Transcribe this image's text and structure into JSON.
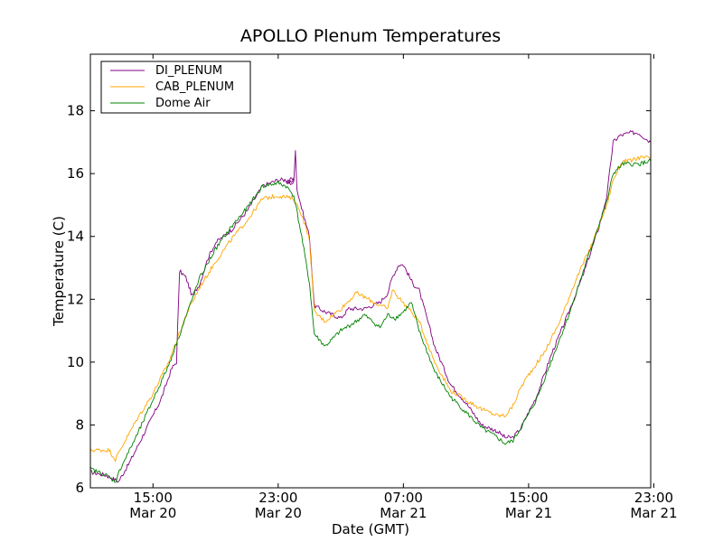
{
  "chart_data": {
    "type": "line",
    "title": "APOLLO Plenum Temperatures",
    "xlabel": "Date (GMT)",
    "ylabel": "Temperature (C)",
    "x_unit": "hours since 2011-03-20 11:00 GMT",
    "xlim": [
      0,
      35.8
    ],
    "ylim": [
      6,
      19.8
    ],
    "grid": false,
    "legend_position": "top-left",
    "yticks": [
      {
        "value": 6,
        "label": "6"
      },
      {
        "value": 8,
        "label": "8"
      },
      {
        "value": 10,
        "label": "10"
      },
      {
        "value": 12,
        "label": "12"
      },
      {
        "value": 14,
        "label": "14"
      },
      {
        "value": 16,
        "label": "16"
      },
      {
        "value": 18,
        "label": "18"
      }
    ],
    "xticks": [
      {
        "value": 4,
        "time": "15:00",
        "date": "Mar 20"
      },
      {
        "value": 12,
        "time": "23:00",
        "date": "Mar 20"
      },
      {
        "value": 20,
        "time": "07:00",
        "date": "Mar 21"
      },
      {
        "value": 28,
        "time": "15:00",
        "date": "Mar 21"
      },
      {
        "value": 36,
        "time": "23:00",
        "date": "Mar 21"
      }
    ],
    "series": [
      {
        "name": "DI_PLENUM",
        "color": "#800080",
        "x": [
          0,
          1,
          1.8,
          2.5,
          3.5,
          4.5,
          5.2,
          5.5,
          5.7,
          6.1,
          6.5,
          7.0,
          7.5,
          8.0,
          9.0,
          10.0,
          11.0,
          12.0,
          13.0,
          12.5,
          13.0,
          13.1,
          13.2,
          13.5,
          14.0,
          14.3,
          15.0,
          16.0,
          16.5,
          17.5,
          18.5,
          19.0,
          19.3,
          19.7,
          20.0,
          20.6,
          21.0,
          22.0,
          23.0,
          24.0,
          25.0,
          26.0,
          26.5,
          27.0,
          27.5,
          28.5,
          29.5,
          30.5,
          31.5,
          32.5,
          33.0,
          33.4,
          33.8,
          34.5,
          35.0,
          35.8
        ],
        "y": [
          6.5,
          6.4,
          6.2,
          6.8,
          7.8,
          8.8,
          9.8,
          10.0,
          12.9,
          12.7,
          12.1,
          12.5,
          13.3,
          13.8,
          14.2,
          14.8,
          15.6,
          15.8,
          15.8,
          15.7,
          15.7,
          16.8,
          15.5,
          14.9,
          14.0,
          11.8,
          11.6,
          11.4,
          11.7,
          11.7,
          11.9,
          12.2,
          12.7,
          13.1,
          13.1,
          12.5,
          12.3,
          10.5,
          9.3,
          8.7,
          8.0,
          7.8,
          7.6,
          7.6,
          7.9,
          8.9,
          10.3,
          11.5,
          12.8,
          14.3,
          15.3,
          17.0,
          17.2,
          17.3,
          17.3,
          17.0
        ]
      },
      {
        "name": "CAB_PLENUM",
        "color": "#ffa500",
        "x": [
          0,
          1.2,
          1.6,
          2.0,
          3.0,
          4.0,
          5.0,
          6.2,
          7.0,
          8.0,
          9.0,
          10.0,
          11.0,
          12.0,
          13.0,
          13.5,
          14.0,
          14.3,
          15.0,
          16.0,
          17.0,
          17.4,
          18.5,
          19.0,
          19.3,
          19.8,
          20.5,
          21.0,
          22.0,
          23.0,
          24.0,
          25.0,
          26.0,
          26.5,
          27.0,
          27.5,
          28.0,
          29.0,
          30.0,
          31.0,
          32.0,
          33.0,
          33.4,
          34.0,
          34.5,
          35.0,
          35.8
        ],
        "y": [
          7.2,
          7.2,
          6.9,
          7.3,
          8.2,
          9.0,
          10.0,
          11.6,
          12.4,
          13.2,
          13.9,
          14.5,
          15.2,
          15.3,
          15.2,
          14.7,
          13.9,
          11.6,
          11.3,
          11.7,
          12.2,
          12.1,
          11.8,
          11.7,
          12.3,
          12.0,
          11.6,
          11.3,
          10.0,
          9.1,
          8.8,
          8.5,
          8.3,
          8.3,
          8.6,
          9.2,
          9.6,
          10.3,
          11.3,
          12.6,
          13.7,
          15.0,
          15.8,
          16.4,
          16.4,
          16.5,
          16.5
        ]
      },
      {
        "name": "Dome Air",
        "color": "#008000",
        "x": [
          0,
          1.0,
          1.6,
          2.0,
          3.0,
          4.0,
          5.0,
          6.0,
          7.0,
          8.0,
          9.0,
          10.0,
          11.0,
          12.0,
          12.5,
          13.0,
          13.5,
          14.0,
          14.3,
          15.0,
          16.0,
          17.0,
          17.5,
          18.0,
          18.5,
          19.0,
          19.5,
          20.0,
          20.5,
          21.0,
          22.0,
          23.0,
          24.0,
          25.0,
          26.0,
          26.5,
          27.0,
          27.5,
          28.5,
          29.5,
          30.5,
          31.5,
          32.5,
          33.0,
          33.4,
          34.0,
          35.0,
          35.8
        ],
        "y": [
          6.6,
          6.4,
          6.2,
          6.7,
          7.7,
          8.8,
          9.9,
          11.3,
          12.7,
          13.6,
          14.3,
          14.9,
          15.6,
          15.7,
          15.6,
          15.3,
          14.0,
          12.5,
          10.9,
          10.5,
          11.0,
          11.3,
          11.5,
          11.3,
          11.1,
          11.5,
          11.4,
          11.6,
          11.9,
          11.0,
          9.7,
          8.9,
          8.4,
          7.9,
          7.6,
          7.4,
          7.5,
          7.9,
          8.8,
          10.1,
          11.4,
          12.9,
          14.4,
          15.1,
          16.0,
          16.3,
          16.3,
          16.4
        ]
      }
    ]
  }
}
